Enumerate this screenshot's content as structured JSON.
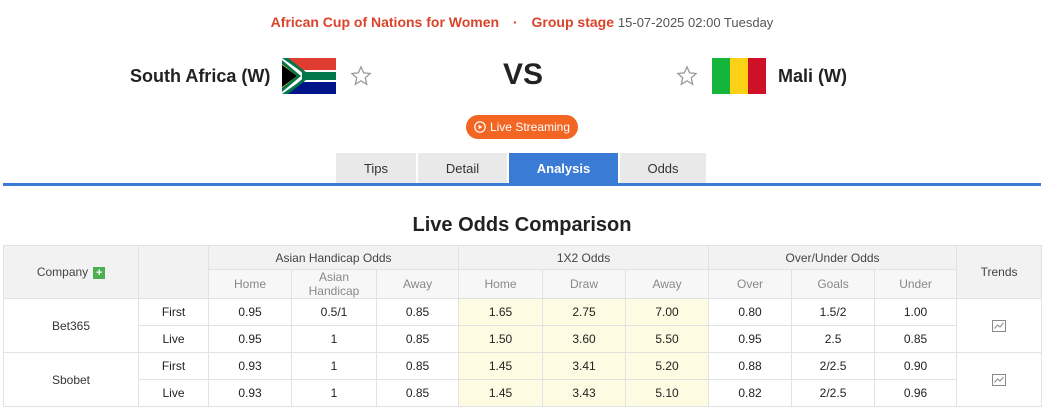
{
  "match": {
    "league": "African Cup of Nations for Women",
    "separator": "·",
    "stage": "Group stage",
    "datetime": "15-07-2025 02:00 Tuesday",
    "home_team": "South Africa (W)",
    "away_team": "Mali (W)",
    "vs": "VS",
    "live_label": "Live Streaming"
  },
  "tabs": [
    {
      "label": "Tips",
      "active": false
    },
    {
      "label": "Detail",
      "active": false
    },
    {
      "label": "Analysis",
      "active": true
    },
    {
      "label": "Odds",
      "active": false
    }
  ],
  "section_title": "Live Odds Comparison",
  "table": {
    "company_header": "Company",
    "trends_header": "Trends",
    "groups": [
      "Asian Handicap Odds",
      "1X2 Odds",
      "Over/Under Odds"
    ],
    "sub_headers": {
      "ah": [
        "Home",
        "Asian Handicap",
        "Away"
      ],
      "x12": [
        "Home",
        "Draw",
        "Away"
      ],
      "ou": [
        "Over",
        "Goals",
        "Under"
      ]
    },
    "rows": [
      {
        "company": "Bet365",
        "lines": [
          {
            "type": "First",
            "ah": [
              "0.95",
              "0.5/1",
              "0.85"
            ],
            "x12": [
              "1.65",
              "2.75",
              "7.00"
            ],
            "ou": [
              "0.80",
              "1.5/2",
              "1.00"
            ]
          },
          {
            "type": "Live",
            "ah": [
              "0.95",
              "1",
              "0.85"
            ],
            "x12": [
              "1.50",
              "3.60",
              "5.50"
            ],
            "ou": [
              "0.95",
              "2.5",
              "0.85"
            ]
          }
        ]
      },
      {
        "company": "Sbobet",
        "lines": [
          {
            "type": "First",
            "ah": [
              "0.93",
              "1",
              "0.85"
            ],
            "x12": [
              "1.45",
              "3.41",
              "5.20"
            ],
            "ou": [
              "0.88",
              "2/2.5",
              "0.90"
            ]
          },
          {
            "type": "Live",
            "ah": [
              "0.93",
              "1",
              "0.85"
            ],
            "x12": [
              "1.45",
              "3.43",
              "5.10"
            ],
            "ou": [
              "0.82",
              "2/2.5",
              "0.96"
            ]
          }
        ]
      }
    ]
  },
  "colors": {
    "accent_red": "#d9442a",
    "live_orange": "#f26522",
    "tab_blue": "#3a7bd5",
    "x12_bg": "#fdfbe2",
    "plus_green": "#4caf50"
  },
  "icons": {
    "star": "star-outline-icon",
    "play": "play-circle-icon",
    "plus": "plus-icon",
    "trend": "chart-trend-icon",
    "home_flag": "south-africa-flag-icon",
    "away_flag": "mali-flag-icon"
  }
}
